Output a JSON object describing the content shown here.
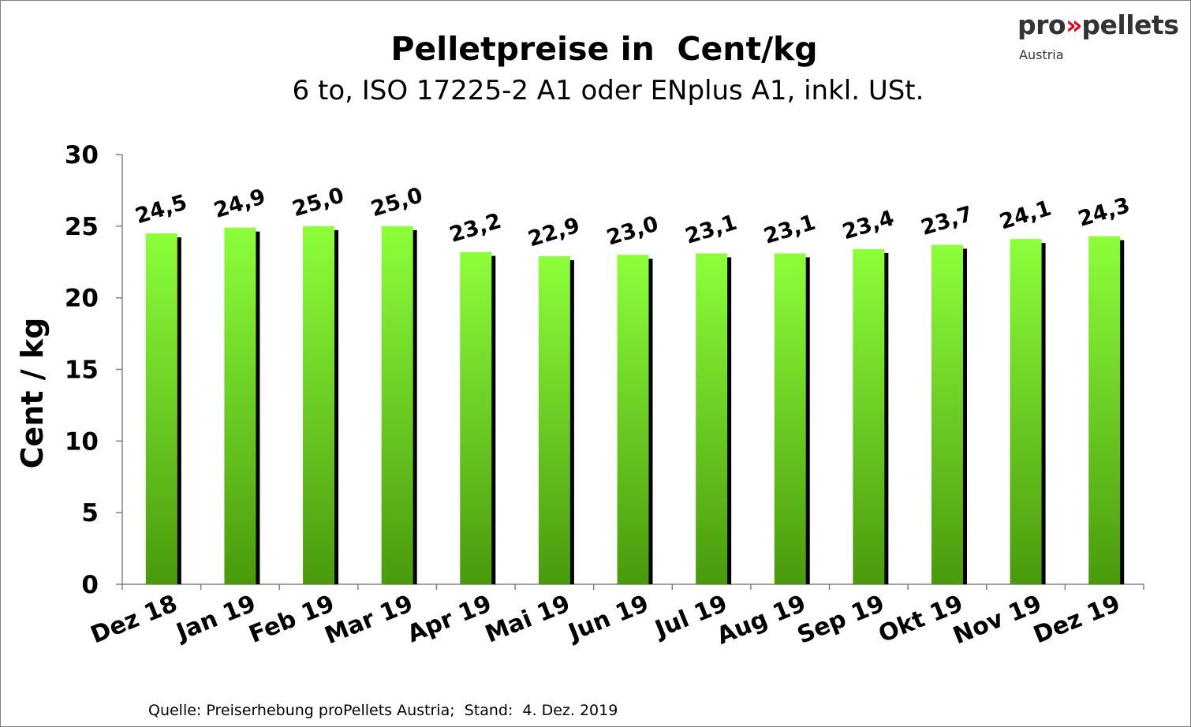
{
  "header": {
    "title": "Pelletpreise in  Cent/kg",
    "subtitle": "6 to, ISO 17225-2 A1 oder ENplus A1, inkl. USt."
  },
  "logo": {
    "prefix": "pro",
    "arrows": "»",
    "name": "pellets",
    "sub": "Austria",
    "accent_color": "#e2001a"
  },
  "source": "Quelle: Preiserhebung proPellets Austria;  Stand:  4. Dez. 2019",
  "chart_data": {
    "type": "bar",
    "title": "Pelletpreise in  Cent/kg",
    "subtitle": "6 to, ISO 17225-2 A1 oder ENplus A1, inkl. USt.",
    "xlabel": "",
    "ylabel": "Cent / kg",
    "ylim": [
      0,
      30
    ],
    "yticks": [
      0,
      5,
      10,
      15,
      20,
      25,
      30
    ],
    "grid": false,
    "legend": "none",
    "categories": [
      "Dez 18",
      "Jan 19",
      "Feb 19",
      "Mar 19",
      "Apr 19",
      "Mai 19",
      "Jun 19",
      "Jul 19",
      "Aug 19",
      "Sep 19",
      "Okt 19",
      "Nov 19",
      "Dez 19"
    ],
    "values": [
      24.5,
      24.9,
      25.0,
      25.0,
      23.2,
      22.9,
      23.0,
      23.1,
      23.1,
      23.4,
      23.7,
      24.1,
      24.3
    ],
    "data_labels": [
      "24,5",
      "24,9",
      "25,0",
      "25,0",
      "23,2",
      "22,9",
      "23,0",
      "23,1",
      "23,1",
      "23,4",
      "23,7",
      "24,1",
      "24,3"
    ],
    "bar_color_top": "#8cff3a",
    "bar_color_bottom": "#4a9a0c",
    "shadow_color": "#000000"
  }
}
